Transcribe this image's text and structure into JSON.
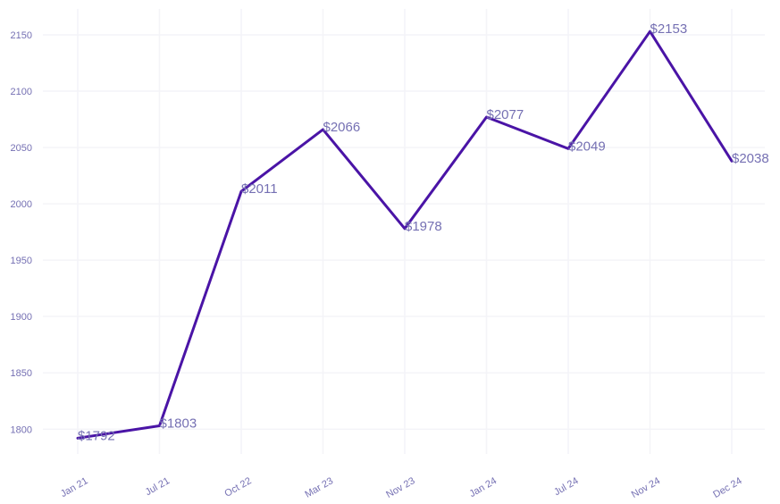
{
  "chart_data": {
    "type": "line",
    "title": "",
    "xlabel": "",
    "ylabel": "",
    "categories": [
      "Jan 21",
      "Jul 21",
      "Oct 22",
      "Mar 23",
      "Nov 23",
      "Jan 24",
      "Jul 24",
      "Nov 24",
      "Dec 24"
    ],
    "series": [
      {
        "values": [
          1792,
          1803,
          2011,
          2066,
          1978,
          2077,
          2049,
          2153,
          2038
        ],
        "labels": [
          "$1792",
          "$1803",
          "$2011",
          "$2066",
          "$1978",
          "$2077",
          "$2049",
          "$2153",
          "$2038"
        ],
        "color": "#4a14a6"
      }
    ],
    "yticks": [
      1800,
      1850,
      1900,
      1950,
      2000,
      2050,
      2100,
      2150
    ],
    "ylim": [
      1778,
      2173
    ],
    "grid": true,
    "legend": "none",
    "label_color": "#7570b3",
    "grid_color": "#f4f4f8"
  }
}
